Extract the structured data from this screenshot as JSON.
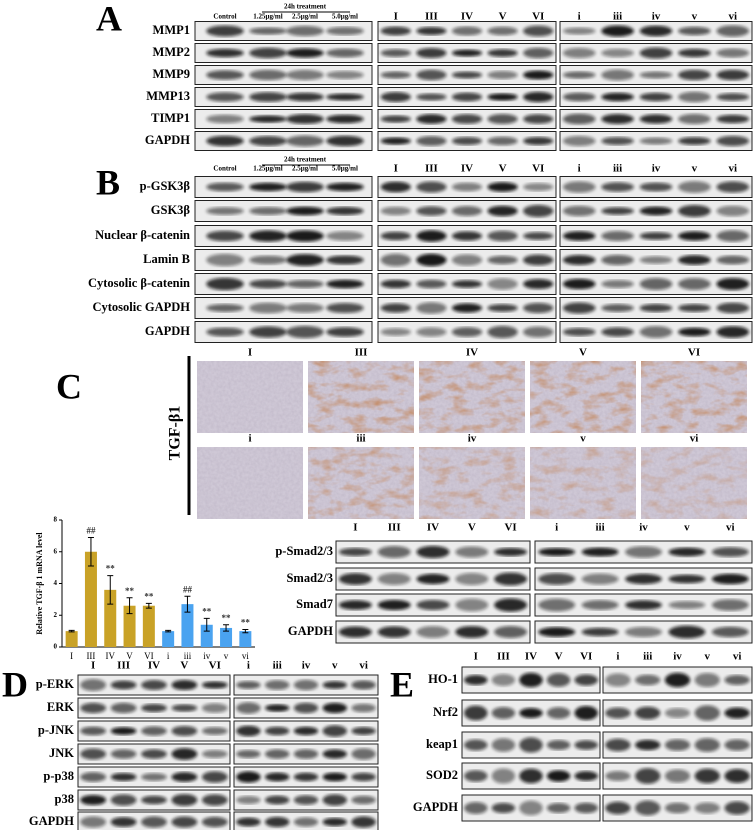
{
  "panel_a": {
    "letter": "A",
    "treatment": "24h treatment",
    "groups": [
      [
        "Control",
        "1.25μg/ml",
        "2.5μg/ml",
        "5.0μg/ml"
      ],
      [
        "I",
        "III",
        "IV",
        "V",
        "VI"
      ],
      [
        "i",
        "iii",
        "iv",
        "v",
        "vi"
      ]
    ],
    "rows": [
      "MMP1",
      "MMP2",
      "MMP9",
      "MMP13",
      "TIMP1",
      "GAPDH"
    ]
  },
  "panel_b": {
    "letter": "B",
    "treatment": "24h treatment",
    "groups": [
      [
        "Control",
        "1.25μg/ml",
        "2.5μg/ml",
        "5.0μg/ml"
      ],
      [
        "I",
        "III",
        "IV",
        "V",
        "VI"
      ],
      [
        "i",
        "iii",
        "iv",
        "v",
        "vi"
      ]
    ],
    "rows": [
      "p-GSK3β",
      "GSK3β",
      "Nuclear β-catenin",
      "Lamin B",
      "Cytosolic β-catenin",
      "Cytosolic GAPDH",
      "GAPDH"
    ]
  },
  "panel_c": {
    "letter": "C",
    "stain": "TGF-β1",
    "row_labels": [
      [
        "I",
        "III",
        "IV",
        "V",
        "VI"
      ],
      [
        "i",
        "iii",
        "iv",
        "v",
        "vi"
      ]
    ]
  },
  "chart_data": {
    "type": "bar",
    "y_label": "Relative TGF-β 1 mRNA level",
    "categories": [
      "I",
      "III",
      "IV",
      "V",
      "VI",
      "i",
      "iii",
      "iv",
      "v",
      "vi"
    ],
    "values": [
      1.0,
      6.0,
      3.6,
      2.6,
      2.6,
      1.0,
      2.7,
      1.4,
      1.2,
      1.0
    ],
    "errors": [
      0.05,
      0.9,
      0.9,
      0.5,
      0.15,
      0.05,
      0.5,
      0.4,
      0.2,
      0.1
    ],
    "annotations": [
      null,
      "##",
      "**",
      "**",
      "**",
      null,
      "##",
      "**",
      "**",
      "**"
    ],
    "colors": [
      "#c9a227",
      "#c9a227",
      "#c9a227",
      "#c9a227",
      "#c9a227",
      "#4aa3f0",
      "#4aa3f0",
      "#4aa3f0",
      "#4aa3f0",
      "#4aa3f0"
    ],
    "ylim": [
      0,
      8
    ],
    "yticks": [
      0,
      2,
      4,
      6,
      8
    ]
  },
  "panel_smad": {
    "groups": [
      [
        "I",
        "III",
        "IV",
        "V",
        "VI"
      ],
      [
        "i",
        "iii",
        "iv",
        "v",
        "vi"
      ]
    ],
    "rows": [
      "p-Smad2/3",
      "Smad2/3",
      "Smad7",
      "GAPDH"
    ]
  },
  "panel_d": {
    "letter": "D",
    "groups": [
      [
        "I",
        "III",
        "IV",
        "V",
        "VI"
      ],
      [
        "i",
        "iii",
        "iv",
        "v",
        "vi"
      ]
    ],
    "rows": [
      "p-ERK",
      "ERK",
      "p-JNK",
      "JNK",
      "p-p38",
      "p38",
      "GAPDH"
    ]
  },
  "panel_e": {
    "letter": "E",
    "groups": [
      [
        "I",
        "III",
        "IV",
        "V",
        "VI"
      ],
      [
        "i",
        "iii",
        "iv",
        "v",
        "vi"
      ]
    ],
    "rows": [
      "HO-1",
      "Nrf2",
      "keap1",
      "SOD2",
      "GAPDH"
    ]
  }
}
